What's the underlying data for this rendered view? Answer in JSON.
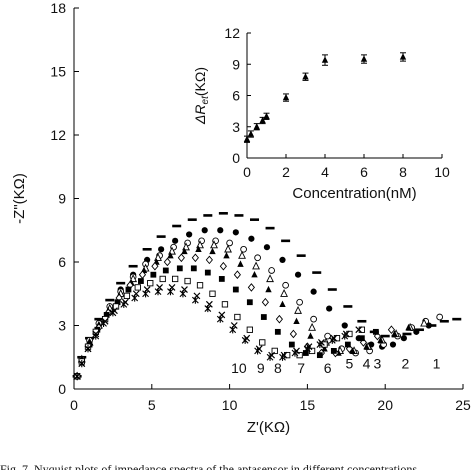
{
  "caption": "Fig. 7. Nyquist plots of impedance spectra of the aptasensor in different concentrations",
  "chart_data": [
    {
      "type": "scatter",
      "title": "",
      "xlabel": "Z'(KΩ)",
      "ylabel": "-Z\"(KΩ)",
      "xlim": [
        0,
        25
      ],
      "ylim": [
        0,
        18
      ],
      "xticks": [
        "0",
        "5",
        "10",
        "15",
        "20",
        "25"
      ],
      "yticks": [
        "0",
        "3",
        "6",
        "9",
        "12",
        "15",
        "18"
      ],
      "grid": false,
      "legend": "none",
      "series": [
        {
          "name": "1",
          "label_pos": [
            23.3,
            1.2
          ],
          "marker": "dash",
          "x": [
            0.2,
            0.5,
            1.0,
            1.6,
            2.3,
            3.0,
            3.8,
            4.7,
            5.6,
            6.6,
            7.6,
            8.6,
            9.6,
            10.6,
            11.6,
            12.6,
            13.6,
            14.6,
            15.6,
            16.6,
            17.6,
            18.5,
            19.3,
            20.0,
            20.7,
            21.4,
            22.2,
            23.0,
            23.8,
            24.6
          ],
          "y": [
            0.6,
            1.5,
            2.4,
            3.3,
            4.2,
            5.0,
            5.8,
            6.6,
            7.2,
            7.7,
            8.0,
            8.2,
            8.3,
            8.2,
            8.0,
            7.6,
            7.0,
            6.3,
            5.5,
            4.7,
            3.9,
            3.2,
            2.7,
            2.5,
            2.5,
            2.6,
            2.8,
            3.0,
            3.2,
            3.3
          ]
        },
        {
          "name": "2",
          "label_pos": [
            21.3,
            1.2
          ],
          "marker": "filled-circle",
          "x": [
            0.2,
            0.5,
            1.0,
            1.6,
            2.3,
            3.0,
            3.8,
            4.7,
            5.6,
            6.5,
            7.4,
            8.4,
            9.4,
            10.4,
            11.4,
            12.4,
            13.4,
            14.4,
            15.4,
            16.4,
            17.4,
            18.3,
            19.1,
            19.8,
            20.5,
            21.2,
            22.0,
            22.8
          ],
          "y": [
            0.6,
            1.4,
            2.3,
            3.1,
            3.9,
            4.7,
            5.4,
            6.1,
            6.6,
            7.0,
            7.3,
            7.5,
            7.5,
            7.4,
            7.1,
            6.7,
            6.1,
            5.4,
            4.6,
            3.8,
            3.0,
            2.4,
            2.1,
            2.0,
            2.1,
            2.4,
            2.7,
            3.0
          ]
        },
        {
          "name": "3",
          "label_pos": [
            19.5,
            1.2
          ],
          "marker": "open-circle",
          "x": [
            0.2,
            0.5,
            1.0,
            1.6,
            2.3,
            3.0,
            3.8,
            4.6,
            5.5,
            6.4,
            7.3,
            8.2,
            9.1,
            10.0,
            10.9,
            11.8,
            12.7,
            13.6,
            14.5,
            15.4,
            16.3,
            17.2,
            18.1,
            19.0,
            19.9,
            20.8,
            21.7,
            22.6,
            23.5
          ],
          "y": [
            0.6,
            1.4,
            2.3,
            3.1,
            3.9,
            4.6,
            5.3,
            5.9,
            6.3,
            6.7,
            6.9,
            7.0,
            7.0,
            6.9,
            6.6,
            6.2,
            5.6,
            4.9,
            4.1,
            3.3,
            2.5,
            1.9,
            1.7,
            1.8,
            2.1,
            2.5,
            2.9,
            3.2,
            3.4
          ]
        },
        {
          "name": "4",
          "label_pos": [
            18.8,
            1.2
          ],
          "marker": "open-triangle",
          "x": [
            0.2,
            0.5,
            1.0,
            1.6,
            2.3,
            3.0,
            3.8,
            4.6,
            5.4,
            6.3,
            7.2,
            8.1,
            9.0,
            9.9,
            10.8,
            11.7,
            12.6,
            13.5,
            14.4,
            15.3,
            16.2,
            17.1,
            18.0,
            18.9,
            19.8,
            20.7,
            21.6,
            22.5
          ],
          "y": [
            0.6,
            1.4,
            2.2,
            3.0,
            3.8,
            4.5,
            5.2,
            5.7,
            6.2,
            6.5,
            6.7,
            6.8,
            6.8,
            6.6,
            6.3,
            5.8,
            5.2,
            4.5,
            3.7,
            2.9,
            2.2,
            1.8,
            1.8,
            2.0,
            2.3,
            2.6,
            2.9,
            3.1
          ]
        },
        {
          "name": "5",
          "label_pos": [
            17.7,
            1.2
          ],
          "marker": "filled-triangle",
          "x": [
            0.2,
            0.5,
            1.0,
            1.6,
            2.2,
            2.9,
            3.7,
            4.5,
            5.3,
            6.2,
            7.1,
            8.0,
            8.9,
            9.8,
            10.7,
            11.6,
            12.5,
            13.4,
            14.3,
            15.2,
            16.1,
            17.0,
            17.9,
            18.8,
            19.7,
            20.6,
            21.5
          ],
          "y": [
            0.6,
            1.4,
            2.2,
            3.0,
            3.7,
            4.4,
            5.0,
            5.6,
            6.0,
            6.3,
            6.5,
            6.6,
            6.5,
            6.3,
            5.9,
            5.4,
            4.7,
            4.0,
            3.2,
            2.5,
            1.9,
            1.7,
            1.8,
            2.0,
            2.3,
            2.6,
            2.9
          ]
        },
        {
          "name": "6",
          "label_pos": [
            16.3,
            1.0
          ],
          "marker": "open-diamond",
          "x": [
            0.2,
            0.5,
            1.0,
            1.6,
            2.2,
            2.9,
            3.6,
            4.4,
            5.2,
            6.0,
            6.9,
            7.8,
            8.7,
            9.6,
            10.5,
            11.4,
            12.3,
            13.2,
            14.1,
            15.0,
            15.9,
            16.8,
            17.7,
            18.6,
            19.5,
            20.4
          ],
          "y": [
            0.6,
            1.3,
            2.1,
            2.9,
            3.6,
            4.3,
            4.9,
            5.4,
            5.8,
            6.0,
            6.2,
            6.2,
            6.1,
            5.8,
            5.4,
            4.8,
            4.1,
            3.3,
            2.6,
            2.0,
            1.7,
            1.7,
            1.9,
            2.2,
            2.5,
            2.8
          ]
        },
        {
          "name": "7",
          "label_pos": [
            14.6,
            1.0
          ],
          "marker": "filled-square",
          "x": [
            0.2,
            0.5,
            1.0,
            1.5,
            2.1,
            2.8,
            3.5,
            4.3,
            5.1,
            5.9,
            6.8,
            7.7,
            8.6,
            9.5,
            10.4,
            11.3,
            12.2,
            13.1,
            14.0,
            14.9,
            15.8,
            16.7,
            17.6,
            18.5,
            19.4
          ],
          "y": [
            0.6,
            1.3,
            2.1,
            2.8,
            3.5,
            4.1,
            4.7,
            5.1,
            5.4,
            5.6,
            5.7,
            5.7,
            5.5,
            5.2,
            4.7,
            4.1,
            3.4,
            2.7,
            2.1,
            1.7,
            1.6,
            1.8,
            2.1,
            2.4,
            2.7
          ]
        },
        {
          "name": "8",
          "label_pos": [
            13.1,
            1.0
          ],
          "marker": "open-square",
          "x": [
            0.2,
            0.5,
            0.9,
            1.4,
            2.0,
            2.7,
            3.4,
            4.1,
            4.9,
            5.7,
            6.5,
            7.3,
            8.1,
            8.9,
            9.7,
            10.5,
            11.3,
            12.1,
            12.9,
            13.7,
            14.5,
            15.3,
            16.1,
            16.9,
            17.7,
            18.5
          ],
          "y": [
            0.6,
            1.3,
            2.0,
            2.7,
            3.3,
            3.9,
            4.4,
            4.8,
            5.0,
            5.2,
            5.2,
            5.1,
            4.9,
            4.5,
            4.0,
            3.4,
            2.8,
            2.2,
            1.8,
            1.6,
            1.6,
            1.8,
            2.1,
            2.4,
            2.6,
            2.8
          ]
        },
        {
          "name": "9",
          "label_pos": [
            12.0,
            1.0
          ],
          "marker": "cross",
          "x": [
            0.2,
            0.5,
            0.9,
            1.4,
            2.0,
            2.6,
            3.3,
            4.0,
            4.7,
            5.5,
            6.3,
            7.1,
            7.9,
            8.7,
            9.5,
            10.3,
            11.1,
            11.9,
            12.7,
            13.5,
            14.3,
            15.1,
            15.9,
            16.7,
            17.5,
            18.3
          ],
          "y": [
            0.6,
            1.2,
            1.9,
            2.6,
            3.2,
            3.7,
            4.1,
            4.5,
            4.7,
            4.8,
            4.8,
            4.7,
            4.4,
            4.0,
            3.5,
            3.0,
            2.4,
            1.9,
            1.6,
            1.6,
            1.8,
            2.0,
            2.2,
            2.4,
            2.6,
            2.8
          ]
        },
        {
          "name": "10",
          "label_pos": [
            10.6,
            1.0
          ],
          "marker": "star",
          "x": [
            0.2,
            0.5,
            0.9,
            1.4,
            1.9,
            2.5,
            3.2,
            3.9,
            4.6,
            5.4,
            6.2,
            7.0,
            7.8,
            8.6,
            9.4,
            10.2,
            11.0,
            11.8,
            12.6,
            13.4,
            14.2,
            15.0,
            15.8,
            16.6,
            17.4
          ],
          "y": [
            0.6,
            1.2,
            1.9,
            2.5,
            3.1,
            3.6,
            4.0,
            4.3,
            4.5,
            4.6,
            4.6,
            4.5,
            4.2,
            3.8,
            3.3,
            2.8,
            2.3,
            1.8,
            1.5,
            1.5,
            1.7,
            1.9,
            2.1,
            2.3,
            2.5
          ]
        }
      ]
    },
    {
      "type": "scatter",
      "title": "",
      "xlabel": "Concentration(nM)",
      "ylabel": "ΔR",
      "ylabel_sub": "et",
      "ylabel_unit": "(KΩ)",
      "xlim": [
        0,
        10
      ],
      "ylim": [
        0,
        12
      ],
      "xticks": [
        "0",
        "2",
        "4",
        "6",
        "8",
        "10"
      ],
      "yticks": [
        "0",
        "3",
        "6",
        "9",
        "12"
      ],
      "grid": false,
      "legend": "none",
      "series": [
        {
          "marker": "filled-triangle",
          "error_bars": true,
          "x": [
            0.0,
            0.2,
            0.5,
            0.8,
            1.0,
            2.0,
            3.0,
            4.0,
            6.0,
            8.0
          ],
          "y": [
            1.8,
            2.3,
            3.0,
            3.6,
            4.0,
            5.8,
            7.8,
            9.4,
            9.5,
            9.7
          ],
          "err": [
            0.3,
            0.3,
            0.3,
            0.3,
            0.3,
            0.35,
            0.35,
            0.5,
            0.4,
            0.4
          ]
        }
      ]
    }
  ]
}
